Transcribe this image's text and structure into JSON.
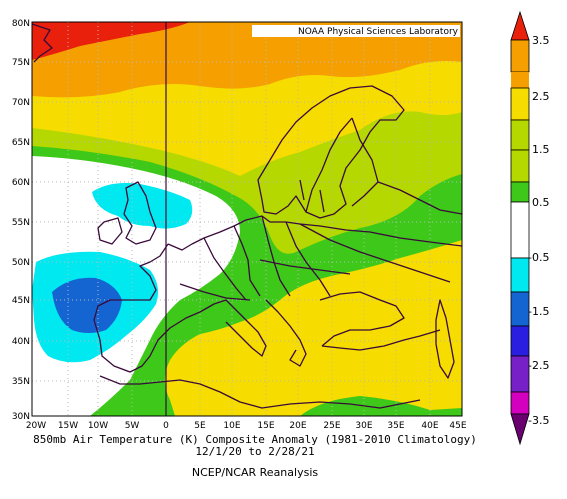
{
  "credit": "NOAA Physical Sciences Laboratory",
  "caption": {
    "line1": "850mb Air Temperature (K) Composite Anomaly (1981-2010 Climatology)",
    "line2": "12/1/20  to 2/28/21",
    "line3": "NCEP/NCAR Reanalysis"
  },
  "axes": {
    "lat_labels": [
      "30N",
      "35N",
      "40N",
      "45N",
      "50N",
      "55N",
      "60N",
      "65N",
      "70N",
      "75N",
      "80N"
    ],
    "lon_labels": [
      "20W",
      "15W",
      "10W",
      "5W",
      "0",
      "5E",
      "10E",
      "15E",
      "20E",
      "25E",
      "30E",
      "35E",
      "40E",
      "45E"
    ]
  },
  "colorbar": {
    "labels": [
      "3.5",
      "2.5",
      "1.5",
      "0.5",
      "-0.5",
      "-1.5",
      "-2.5",
      "-3.5"
    ],
    "colors": [
      "#e8200c",
      "#f5a000",
      "#f7dc00",
      "#b4d800",
      "#3dc81a",
      "#ffffff",
      "#00e8f0",
      "#1464d2",
      "#2a1ee0",
      "#7820c8",
      "#d400c0",
      "#6a0070"
    ]
  },
  "colors": {
    "red": "#e8200c",
    "orange": "#f5a000",
    "yellow": "#f7dc00",
    "yellow_green": "#b4d800",
    "green": "#3dc81a",
    "cyan": "#00e8f0",
    "blue": "#1464d2",
    "coast": "#3a0a3a"
  }
}
